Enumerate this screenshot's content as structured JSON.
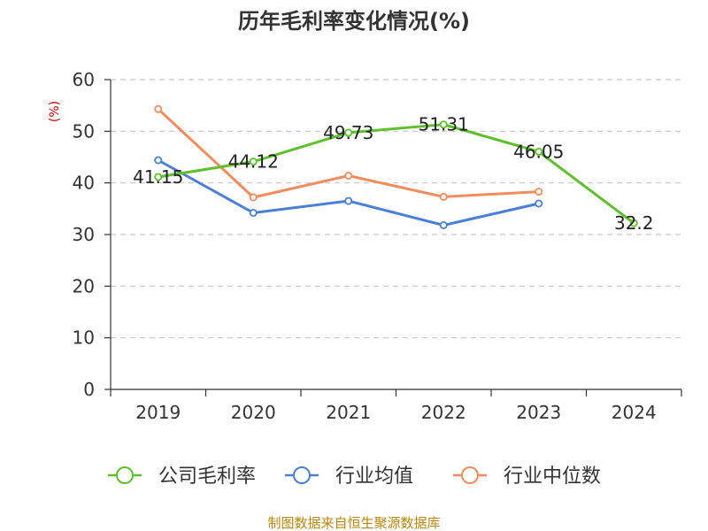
{
  "chart_data": {
    "type": "line",
    "title": "历年毛利率变化情况(%)",
    "y_unit_label": "(%)",
    "categories": [
      "2019",
      "2020",
      "2021",
      "2022",
      "2023",
      "2024"
    ],
    "ylim": [
      0,
      60
    ],
    "yticks": [
      "0",
      "10",
      "20",
      "30",
      "40",
      "50",
      "60"
    ],
    "grid": true,
    "legend_position": "bottom",
    "series": [
      {
        "name": "公司毛利率",
        "color": "#5ec02c",
        "values": [
          41.15,
          44.12,
          49.73,
          51.31,
          46.05,
          32.2
        ],
        "labels": [
          "41.15",
          "44.12",
          "49.73",
          "51.31",
          "46.05",
          "32.2"
        ]
      },
      {
        "name": "行业均值",
        "color": "#4a7fd8",
        "values": [
          44.4,
          34.2,
          36.5,
          31.8,
          36.0,
          null
        ]
      },
      {
        "name": "行业中位数",
        "color": "#f28c5c",
        "values": [
          54.3,
          37.2,
          41.4,
          37.3,
          38.3,
          null
        ]
      }
    ]
  },
  "source_text": "制图数据来自恒生聚源数据库"
}
